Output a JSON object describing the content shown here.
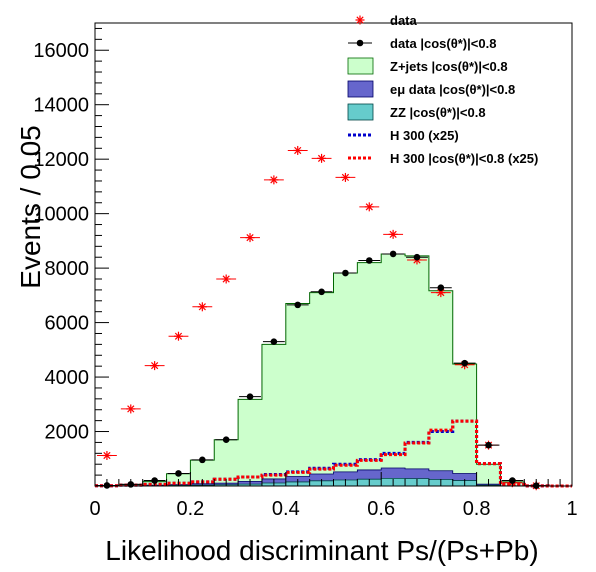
{
  "chart_data": {
    "type": "histogram",
    "xlabel": "Likelihood discriminant Ps/(Ps+Pb)",
    "ylabel": "Events / 0.05",
    "xlim": [
      0,
      1
    ],
    "ylim": [
      0,
      17000
    ],
    "bin_width": 0.05,
    "x_ticks": [
      0,
      0.2,
      0.4,
      0.6,
      0.8,
      1
    ],
    "x_tick_labels": [
      "0",
      "0.2",
      "0.4",
      "0.6",
      "0.8",
      "1"
    ],
    "y_ticks": [
      2000,
      4000,
      6000,
      8000,
      10000,
      12000,
      14000,
      16000
    ],
    "y_tick_labels": [
      "2000",
      "4000",
      "6000",
      "8000",
      "10000",
      "12000",
      "14000",
      "16000"
    ],
    "bin_edges": [
      0,
      0.05,
      0.1,
      0.15,
      0.2,
      0.25,
      0.3,
      0.35,
      0.4,
      0.45,
      0.5,
      0.55,
      0.6,
      0.65,
      0.7,
      0.75,
      0.8,
      0.85,
      0.9,
      0.95,
      1.0
    ],
    "legend_position": "top-right",
    "colors": {
      "zjets": "#ccffcc",
      "emu": "#6666cc",
      "zz": "#66cccc",
      "data_all": "#ff0000",
      "data_cut": "#000000",
      "h300": "#0000cc",
      "h300_cut": "#ff0000"
    },
    "series": [
      {
        "name": "data",
        "key": "data_all",
        "style": "star-errorbar",
        "values": [
          1120,
          2830,
          4420,
          5500,
          6580,
          7600,
          9120,
          11240,
          12320,
          12030,
          11330,
          10250,
          9240,
          8300,
          7100,
          4450,
          1500,
          120,
          10,
          0
        ]
      },
      {
        "name": "data |cos(θ*)|<0.8",
        "key": "data_cut",
        "style": "dot-errorbar",
        "values": [
          20,
          60,
          200,
          460,
          960,
          1700,
          3280,
          5300,
          6650,
          7130,
          7820,
          8280,
          8520,
          8400,
          7280,
          4510,
          1500,
          200,
          10,
          0
        ]
      },
      {
        "name": "Z+jets |cos(θ*)|<0.8",
        "key": "zjets",
        "style": "filled-hist",
        "values": [
          20,
          60,
          160,
          450,
          950,
          1700,
          3180,
          5200,
          6700,
          7100,
          7820,
          8200,
          8520,
          8450,
          7170,
          4480,
          800,
          150,
          20,
          0
        ]
      },
      {
        "name": "eμ data |cos(θ*)|<0.8",
        "key": "emu",
        "style": "filled-hist",
        "values": [
          5,
          10,
          20,
          30,
          50,
          60,
          100,
          150,
          200,
          250,
          300,
          340,
          380,
          360,
          320,
          260,
          40,
          5,
          0,
          0
        ]
      },
      {
        "name": "ZZ |cos(θ*)|<0.8",
        "key": "zz",
        "style": "filled-hist",
        "values": [
          3,
          5,
          10,
          20,
          30,
          45,
          70,
          110,
          150,
          190,
          220,
          250,
          280,
          270,
          240,
          200,
          30,
          3,
          0,
          0
        ]
      },
      {
        "name": "H 300 (x25)",
        "key": "h300",
        "style": "dashed-hist",
        "values": [
          10,
          30,
          60,
          100,
          150,
          250,
          330,
          420,
          520,
          650,
          800,
          970,
          1200,
          1600,
          2000,
          2380,
          820,
          60,
          5,
          0
        ]
      },
      {
        "name": "H 300 |cos(θ*)|<0.8 (x25)",
        "key": "h300_cut",
        "style": "dashed-hist",
        "values": [
          10,
          30,
          60,
          100,
          150,
          250,
          330,
          400,
          500,
          620,
          760,
          940,
          1150,
          1580,
          2050,
          2380,
          820,
          60,
          5,
          0
        ]
      }
    ],
    "legend": {
      "data": "data",
      "data_cut": "data |cos(θ*)|<0.8",
      "zjets": "Z+jets |cos(θ*)|<0.8",
      "emu": "eμ data |cos(θ*)|<0.8",
      "zz": "ZZ |cos(θ*)|<0.8",
      "h300": "H 300 (x25)",
      "h300_cut": "H 300 |cos(θ*)|<0.8 (x25)"
    }
  }
}
